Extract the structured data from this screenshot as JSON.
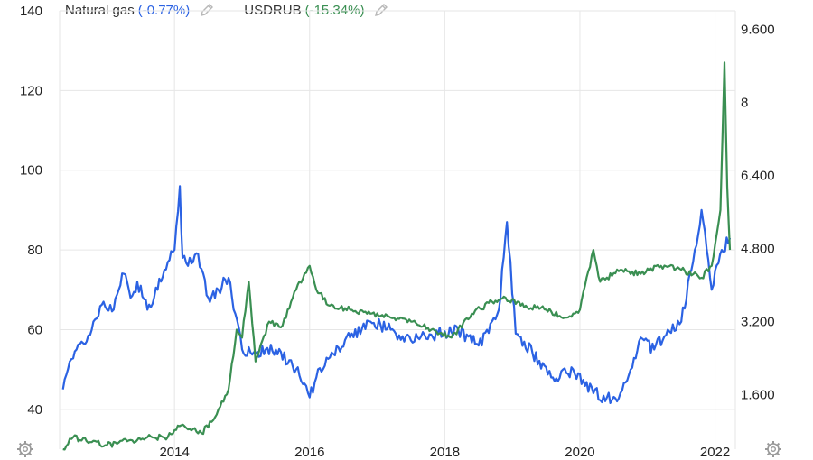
{
  "legend": {
    "items": [
      {
        "name": "Natural gas",
        "change": "(-0.77%)",
        "color": "#2b62e3",
        "edit_icon": "pencil-icon"
      },
      {
        "name": "USDRUB",
        "change": "(-15.34%)",
        "color": "#3a8f52",
        "edit_icon": "pencil-icon"
      }
    ]
  },
  "settings_icons": [
    "gear-icon",
    "gear-icon"
  ],
  "chart_data": {
    "type": "line",
    "grid": true,
    "xlim": [
      2012.3,
      2022.3
    ],
    "x_ticks": [
      {
        "value": 2014,
        "label": "2014"
      },
      {
        "value": 2016,
        "label": "2016"
      },
      {
        "value": 2018,
        "label": "2018"
      },
      {
        "value": 2020,
        "label": "2020"
      },
      {
        "value": 2022,
        "label": "2022"
      }
    ],
    "left_axis": {
      "min": 30,
      "max": 140,
      "ticks": [
        40,
        60,
        80,
        100,
        120,
        140
      ]
    },
    "right_axis": {
      "min": 0.4,
      "max": 10.0,
      "ticks": [
        {
          "value": 1.6,
          "label": "1.600"
        },
        {
          "value": 3.2,
          "label": "3.200"
        },
        {
          "value": 4.8,
          "label": "4.800"
        },
        {
          "value": 6.4,
          "label": "6.400"
        },
        {
          "value": 8.0,
          "label": "8"
        },
        {
          "value": 9.6,
          "label": "9.600"
        }
      ]
    },
    "series": [
      {
        "name": "Natural gas",
        "axis": "left",
        "color": "#2b62e3",
        "x": [
          2012.35,
          2012.45,
          2012.55,
          2012.7,
          2012.8,
          2012.95,
          2013.1,
          2013.25,
          2013.35,
          2013.45,
          2013.6,
          2013.75,
          2013.85,
          2014.0,
          2014.08,
          2014.12,
          2014.2,
          2014.35,
          2014.5,
          2014.65,
          2014.8,
          2014.9,
          2015.0,
          2015.2,
          2015.5,
          2015.8,
          2016.0,
          2016.1,
          2016.3,
          2016.6,
          2016.9,
          2017.2,
          2017.4,
          2017.6,
          2017.9,
          2018.2,
          2018.5,
          2018.8,
          2018.92,
          2019.05,
          2019.3,
          2019.6,
          2019.9,
          2020.2,
          2020.4,
          2020.55,
          2020.75,
          2020.9,
          2021.1,
          2021.3,
          2021.5,
          2021.65,
          2021.8,
          2021.95,
          2022.1,
          2022.22
        ],
        "values": [
          45,
          52,
          55,
          57,
          62,
          67,
          65,
          74,
          68,
          72,
          65,
          70,
          75,
          80,
          96,
          78,
          76,
          79,
          68,
          70,
          73,
          64,
          55,
          54,
          55,
          50,
          43,
          48,
          53,
          58,
          62,
          60,
          57,
          58,
          59,
          60,
          56,
          65,
          87,
          59,
          54,
          48,
          50,
          44,
          43,
          42,
          50,
          58,
          55,
          60,
          62,
          75,
          90,
          70,
          80,
          83
        ]
      },
      {
        "name": "USDRUB",
        "axis": "left",
        "color": "#3a8f52",
        "x": [
          2012.35,
          2012.5,
          2012.7,
          2013.0,
          2013.3,
          2013.6,
          2013.9,
          2014.1,
          2014.4,
          2014.6,
          2014.8,
          2014.92,
          2015.0,
          2015.1,
          2015.2,
          2015.4,
          2015.6,
          2015.8,
          2016.0,
          2016.1,
          2016.3,
          2016.6,
          2016.9,
          2017.2,
          2017.5,
          2017.8,
          2018.1,
          2018.4,
          2018.7,
          2018.9,
          2019.2,
          2019.5,
          2019.8,
          2020.0,
          2020.2,
          2020.3,
          2020.6,
          2020.9,
          2021.2,
          2021.5,
          2021.8,
          2021.95,
          2022.08,
          2022.14,
          2022.18,
          2022.22
        ],
        "values": [
          30,
          33,
          32,
          31,
          32,
          33,
          33,
          36,
          34,
          38,
          45,
          60,
          58,
          72,
          52,
          62,
          61,
          70,
          76,
          70,
          66,
          65,
          64,
          63,
          62,
          60,
          58,
          64,
          67,
          68,
          66,
          65,
          63,
          65,
          80,
          72,
          75,
          74,
          76,
          75,
          73,
          76,
          90,
          127,
          96,
          80
        ]
      }
    ]
  }
}
